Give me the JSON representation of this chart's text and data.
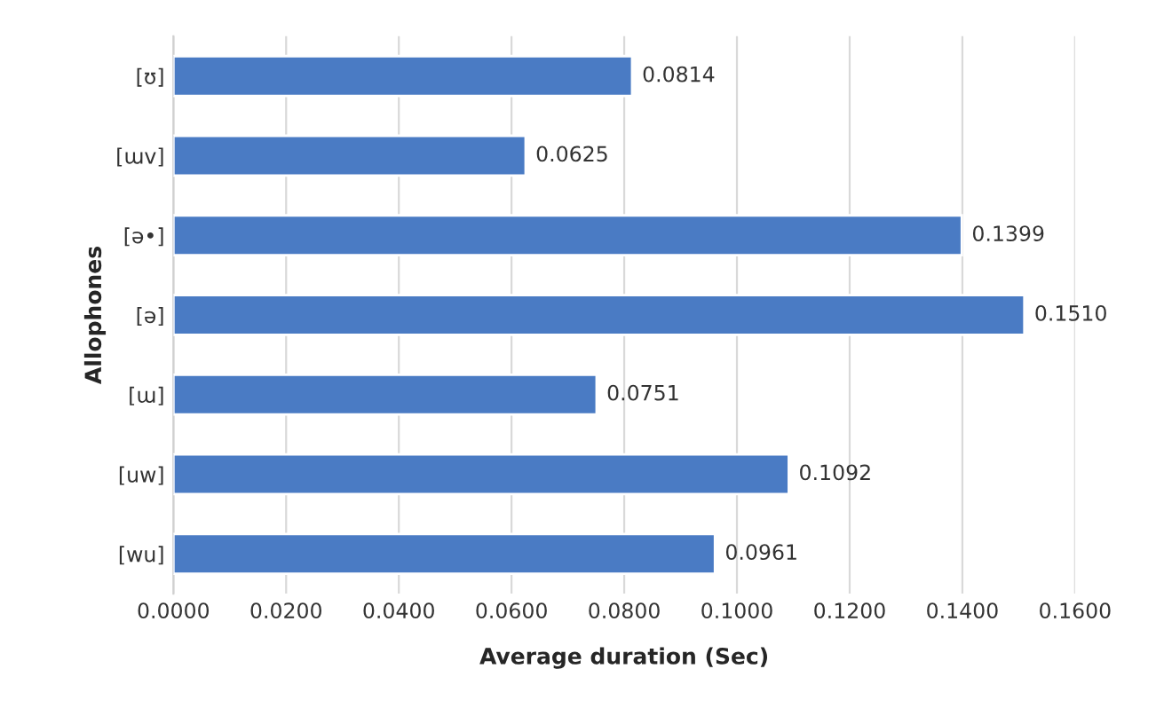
{
  "chart_data": {
    "type": "bar",
    "orientation": "horizontal",
    "xlabel": "Average duration (Sec)",
    "ylabel": "Allophones",
    "categories": [
      "[ʊ]",
      "[ɯv]",
      "[ə•]",
      "[ə]",
      "[ɯ]",
      "[uw]",
      "[wu]"
    ],
    "values": [
      0.0814,
      0.0625,
      0.1399,
      0.151,
      0.0751,
      0.1092,
      0.0961
    ],
    "value_labels": [
      "0.0814",
      "0.0625",
      "0.1399",
      "0.1510",
      "0.0751",
      "0.1092",
      "0.0961"
    ],
    "color": "#4a7bc4",
    "xlim": [
      0,
      0.16
    ],
    "xticks": [
      {
        "value": 0,
        "label": "0.0000"
      },
      {
        "value": 0.02,
        "label": "0.0200"
      },
      {
        "value": 0.04,
        "label": "0.0400"
      },
      {
        "value": 0.06,
        "label": "0.0600"
      },
      {
        "value": 0.08,
        "label": "0.0800"
      },
      {
        "value": 0.1,
        "label": "0.1000"
      },
      {
        "value": 0.12,
        "label": "0.1200"
      },
      {
        "value": 0.14,
        "label": "0.1400"
      },
      {
        "value": 0.16,
        "label": "0.1600"
      }
    ],
    "grid": "x"
  }
}
